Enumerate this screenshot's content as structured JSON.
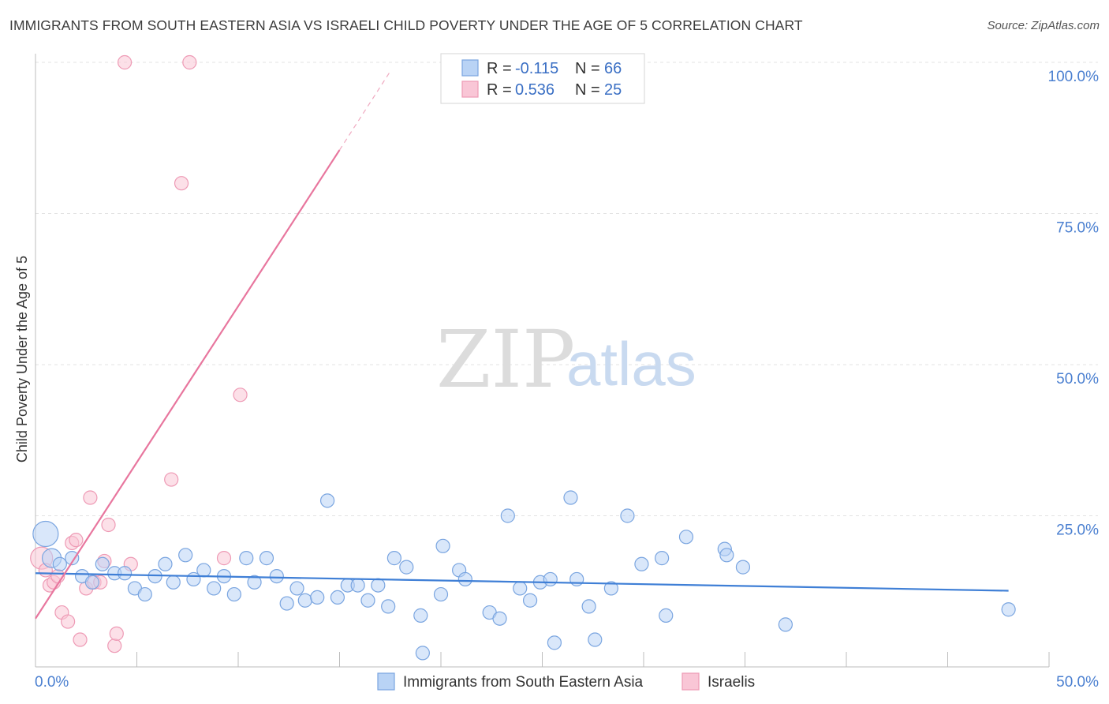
{
  "header": {
    "title": "IMMIGRANTS FROM SOUTH EASTERN ASIA VS ISRAELI CHILD POVERTY UNDER THE AGE OF 5 CORRELATION CHART",
    "source": "Source: ZipAtlas.com"
  },
  "watermark": {
    "zip": "ZIP",
    "atlas": "atlas"
  },
  "legend": {
    "r_label": "R =",
    "n_label": "N =",
    "rows": [
      {
        "r": "-0.115",
        "n": "66",
        "fill": "#b9d3f5",
        "stroke": "#7aa5e0"
      },
      {
        "r": "0.536",
        "n": "25",
        "fill": "#f9c6d6",
        "stroke": "#ee9ab5"
      }
    ]
  },
  "bottom_legend": [
    {
      "label": "Immigrants from South Eastern Asia",
      "fill": "#b9d3f5",
      "stroke": "#7aa5e0"
    },
    {
      "label": "Israelis",
      "fill": "#f9c6d6",
      "stroke": "#ee9ab5"
    }
  ],
  "chart_data": {
    "type": "scatter",
    "ylabel": "Child Poverty Under the Age of 5",
    "xlim": [
      0,
      50
    ],
    "ylim": [
      0,
      100
    ],
    "x_tick_labels": [
      "0.0%",
      "50.0%"
    ],
    "y_ticks": [
      25,
      50,
      75,
      100
    ],
    "y_tick_labels": [
      "25.0%",
      "50.0%",
      "75.0%",
      "100.0%"
    ],
    "grid": true,
    "colors": {
      "blue": "#3f7fd6",
      "pink": "#e8769e"
    },
    "series": [
      {
        "name": "Immigrants from South Eastern Asia",
        "color": "#3f7fd6",
        "points": [
          {
            "x": 0.5,
            "y": 22.0,
            "r": 16
          },
          {
            "x": 0.8,
            "y": 18.0,
            "r": 12
          },
          {
            "x": 1.2,
            "y": 17.0
          },
          {
            "x": 1.8,
            "y": 18.0
          },
          {
            "x": 2.3,
            "y": 15.0
          },
          {
            "x": 2.8,
            "y": 14.0
          },
          {
            "x": 3.3,
            "y": 17.0
          },
          {
            "x": 3.9,
            "y": 15.5
          },
          {
            "x": 4.4,
            "y": 15.5
          },
          {
            "x": 4.9,
            "y": 13.0
          },
          {
            "x": 5.4,
            "y": 12.0
          },
          {
            "x": 5.9,
            "y": 15.0
          },
          {
            "x": 6.4,
            "y": 17.0
          },
          {
            "x": 6.8,
            "y": 14.0
          },
          {
            "x": 7.4,
            "y": 18.5
          },
          {
            "x": 7.8,
            "y": 14.5
          },
          {
            "x": 8.3,
            "y": 16.0
          },
          {
            "x": 8.8,
            "y": 13.0
          },
          {
            "x": 9.3,
            "y": 15.0
          },
          {
            "x": 9.8,
            "y": 12.0
          },
          {
            "x": 10.4,
            "y": 18.0
          },
          {
            "x": 10.8,
            "y": 14.0
          },
          {
            "x": 11.4,
            "y": 18.0
          },
          {
            "x": 11.9,
            "y": 15.0
          },
          {
            "x": 12.4,
            "y": 10.5
          },
          {
            "x": 12.9,
            "y": 13.0
          },
          {
            "x": 13.3,
            "y": 11.0
          },
          {
            "x": 13.9,
            "y": 11.5
          },
          {
            "x": 14.4,
            "y": 27.5
          },
          {
            "x": 14.9,
            "y": 11.5
          },
          {
            "x": 15.4,
            "y": 13.5
          },
          {
            "x": 15.9,
            "y": 13.5
          },
          {
            "x": 16.4,
            "y": 11.0
          },
          {
            "x": 16.9,
            "y": 13.5
          },
          {
            "x": 17.4,
            "y": 10.0
          },
          {
            "x": 17.7,
            "y": 18.0
          },
          {
            "x": 18.3,
            "y": 16.5
          },
          {
            "x": 19.0,
            "y": 8.5
          },
          {
            "x": 19.1,
            "y": 2.3
          },
          {
            "x": 20.0,
            "y": 12.0
          },
          {
            "x": 20.1,
            "y": 20.0
          },
          {
            "x": 20.9,
            "y": 16.0
          },
          {
            "x": 21.2,
            "y": 14.5
          },
          {
            "x": 22.4,
            "y": 9.0
          },
          {
            "x": 22.9,
            "y": 8.0
          },
          {
            "x": 23.3,
            "y": 25.0
          },
          {
            "x": 23.9,
            "y": 13.0
          },
          {
            "x": 24.4,
            "y": 11.0
          },
          {
            "x": 24.9,
            "y": 14.0
          },
          {
            "x": 25.4,
            "y": 14.5
          },
          {
            "x": 25.6,
            "y": 4.0
          },
          {
            "x": 26.4,
            "y": 28.0
          },
          {
            "x": 26.7,
            "y": 14.5
          },
          {
            "x": 27.3,
            "y": 10.0
          },
          {
            "x": 27.6,
            "y": 4.5
          },
          {
            "x": 28.4,
            "y": 13.0
          },
          {
            "x": 29.2,
            "y": 25.0
          },
          {
            "x": 29.9,
            "y": 17.0
          },
          {
            "x": 30.9,
            "y": 18.0
          },
          {
            "x": 31.1,
            "y": 8.5
          },
          {
            "x": 32.1,
            "y": 21.5
          },
          {
            "x": 34.0,
            "y": 19.5
          },
          {
            "x": 34.1,
            "y": 18.5
          },
          {
            "x": 34.9,
            "y": 16.5
          },
          {
            "x": 37.0,
            "y": 7.0
          },
          {
            "x": 48.0,
            "y": 9.5
          }
        ],
        "trend": {
          "x1": 0,
          "y1": 15.5,
          "x2": 48,
          "y2": 12.6
        }
      },
      {
        "name": "Israelis",
        "color": "#e8769e",
        "points": [
          {
            "x": 0.3,
            "y": 18.0,
            "r": 14
          },
          {
            "x": 0.5,
            "y": 16.0
          },
          {
            "x": 0.7,
            "y": 13.5
          },
          {
            "x": 0.9,
            "y": 14.0
          },
          {
            "x": 1.1,
            "y": 15.0
          },
          {
            "x": 1.3,
            "y": 9.0
          },
          {
            "x": 1.6,
            "y": 7.5
          },
          {
            "x": 1.8,
            "y": 20.5
          },
          {
            "x": 2.0,
            "y": 21.0
          },
          {
            "x": 2.2,
            "y": 4.5
          },
          {
            "x": 2.5,
            "y": 13.0
          },
          {
            "x": 2.7,
            "y": 28.0
          },
          {
            "x": 2.9,
            "y": 14.0
          },
          {
            "x": 3.2,
            "y": 14.0
          },
          {
            "x": 3.4,
            "y": 17.5
          },
          {
            "x": 3.6,
            "y": 23.5
          },
          {
            "x": 3.9,
            "y": 3.5
          },
          {
            "x": 4.0,
            "y": 5.5
          },
          {
            "x": 4.4,
            "y": 100
          },
          {
            "x": 4.7,
            "y": 17.0
          },
          {
            "x": 6.7,
            "y": 31.0
          },
          {
            "x": 7.2,
            "y": 80
          },
          {
            "x": 7.6,
            "y": 100
          },
          {
            "x": 9.3,
            "y": 18.0
          },
          {
            "x": 10.1,
            "y": 45.0
          }
        ],
        "trend": {
          "x1": 0,
          "y1": 8.0,
          "x2": 15.0,
          "y2": 85.5,
          "dash_x1": 15.0,
          "dash_y1": 85.5,
          "dash_x2": 17.5,
          "dash_y2": 98.5
        }
      }
    ]
  }
}
